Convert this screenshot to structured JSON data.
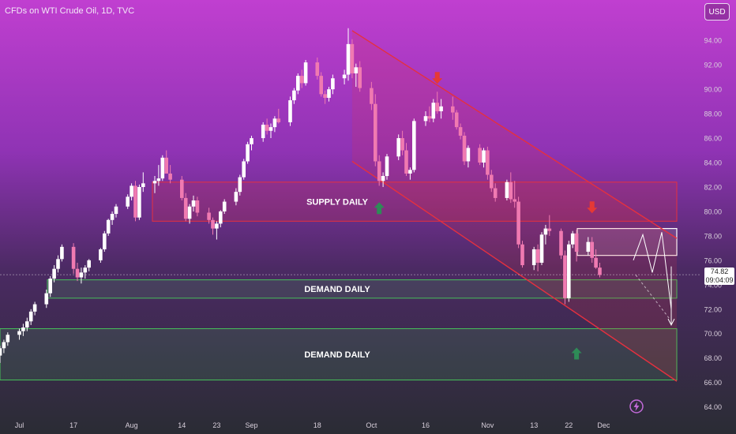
{
  "header": {
    "title": "CFDs on WTI Crude Oil, 1D, TVC",
    "currency_button": "USD"
  },
  "current_price": {
    "value": "74.82",
    "countdown": "09:04:09"
  },
  "chart_data": {
    "type": "candlestick",
    "symbol": "CFDs on WTI Crude Oil",
    "interval": "1D",
    "source": "TVC",
    "y_axis": {
      "ticks": [
        64,
        66,
        68,
        70,
        72,
        74,
        76,
        78,
        80,
        82,
        84,
        86,
        88,
        90,
        92,
        94
      ],
      "tick_labels": [
        "64.00",
        "66.00",
        "68.00",
        "70.00",
        "72.00",
        "74.00",
        "76.00",
        "78.00",
        "80.00",
        "82.00",
        "84.00",
        "86.00",
        "88.00",
        "90.00",
        "92.00",
        "94.00"
      ],
      "range": [
        63.2,
        95.5
      ],
      "position": "right"
    },
    "x_axis": {
      "tick_labels": [
        "Jul",
        "17",
        "Aug",
        "14",
        "23",
        "Sep",
        "18",
        "Oct",
        "16",
        "Nov",
        "13",
        "22",
        "Dec"
      ],
      "tick_positions": [
        "2023-07-03",
        "2023-07-17",
        "2023-08-01",
        "2023-08-14",
        "2023-08-23",
        "2023-09-01",
        "2023-09-18",
        "2023-10-02",
        "2023-10-16",
        "2023-11-01",
        "2023-11-13",
        "2023-11-22",
        "2023-12-01"
      ]
    },
    "candles_ohlc": [
      [
        68.2,
        69.0,
        67.6,
        68.8
      ],
      [
        68.8,
        69.5,
        68.4,
        69.3
      ],
      [
        69.3,
        70.1,
        69.0,
        69.9
      ],
      [
        69.9,
        70.4,
        69.5,
        70.2
      ],
      [
        70.2,
        70.8,
        69.8,
        70.5
      ],
      [
        70.5,
        71.3,
        70.2,
        71.0
      ],
      [
        71.0,
        72.0,
        70.7,
        71.8
      ],
      [
        71.8,
        72.6,
        71.5,
        72.4
      ],
      [
        72.4,
        73.6,
        72.1,
        73.3
      ],
      [
        73.3,
        74.7,
        73.0,
        74.5
      ],
      [
        74.5,
        75.6,
        74.2,
        75.3
      ],
      [
        75.3,
        76.4,
        75.0,
        76.1
      ],
      [
        76.1,
        77.3,
        75.9,
        77.1
      ],
      [
        77.1,
        77.4,
        74.9,
        75.3
      ],
      [
        75.3,
        75.8,
        74.3,
        74.6
      ],
      [
        74.6,
        75.4,
        74.1,
        75.0
      ],
      [
        75.0,
        75.6,
        74.5,
        75.4
      ],
      [
        75.4,
        76.1,
        75.1,
        76.0
      ],
      [
        76.0,
        77.0,
        75.8,
        76.9
      ],
      [
        76.9,
        78.4,
        76.7,
        78.2
      ],
      [
        78.2,
        79.4,
        78.0,
        79.3
      ],
      [
        79.3,
        80.0,
        78.9,
        79.8
      ],
      [
        79.8,
        80.6,
        79.5,
        80.4
      ],
      [
        80.4,
        81.4,
        80.2,
        81.2
      ],
      [
        81.2,
        82.3,
        80.9,
        82.1
      ],
      [
        82.1,
        82.5,
        79.2,
        79.5
      ],
      [
        79.5,
        82.2,
        79.3,
        82.0
      ],
      [
        82.0,
        83.2,
        81.6,
        82.3
      ],
      [
        82.3,
        82.9,
        81.5,
        82.5
      ],
      [
        82.5,
        83.8,
        82.1,
        82.7
      ],
      [
        82.7,
        84.6,
        82.5,
        84.4
      ],
      [
        84.4,
        85.0,
        83.2,
        83.1
      ],
      [
        83.1,
        83.8,
        82.3,
        82.6
      ],
      [
        82.6,
        82.9,
        80.9,
        81.1
      ],
      [
        81.1,
        81.5,
        79.2,
        79.4
      ],
      [
        79.4,
        80.6,
        79.0,
        80.4
      ],
      [
        80.4,
        81.3,
        80.0,
        80.9
      ],
      [
        80.9,
        81.2,
        79.6,
        79.9
      ],
      [
        79.9,
        80.3,
        79.0,
        79.3
      ],
      [
        79.3,
        79.5,
        78.1,
        78.6
      ],
      [
        78.6,
        79.2,
        77.7,
        79.0
      ],
      [
        79.0,
        80.1,
        78.7,
        80.0
      ],
      [
        80.0,
        81.0,
        79.8,
        80.8
      ],
      [
        80.8,
        81.9,
        80.5,
        81.6
      ],
      [
        81.6,
        83.0,
        81.3,
        82.8
      ],
      [
        82.8,
        84.3,
        82.6,
        84.1
      ],
      [
        84.1,
        85.7,
        83.9,
        85.5
      ],
      [
        85.5,
        86.2,
        85.0,
        86.0
      ],
      [
        86.0,
        87.3,
        85.7,
        87.1
      ],
      [
        87.1,
        87.6,
        86.3,
        86.6
      ],
      [
        86.6,
        87.2,
        86.0,
        86.9
      ],
      [
        86.9,
        87.8,
        86.5,
        87.6
      ],
      [
        87.6,
        88.4,
        87.2,
        87.3
      ],
      [
        87.3,
        89.4,
        87.0,
        89.1
      ],
      [
        89.1,
        90.1,
        88.8,
        89.9
      ],
      [
        89.9,
        91.3,
        89.6,
        91.1
      ],
      [
        91.1,
        91.6,
        90.1,
        90.5
      ],
      [
        90.5,
        92.4,
        90.3,
        92.2
      ],
      [
        92.2,
        92.6,
        90.8,
        91.1
      ],
      [
        91.1,
        91.4,
        89.4,
        89.6
      ],
      [
        89.6,
        89.9,
        88.8,
        89.3
      ],
      [
        89.3,
        90.2,
        89.0,
        90.0
      ],
      [
        90.0,
        91.2,
        89.6,
        90.9
      ],
      [
        90.9,
        91.6,
        90.4,
        91.2
      ],
      [
        91.2,
        95.0,
        90.7,
        93.7
      ],
      [
        93.7,
        94.1,
        90.9,
        91.3
      ],
      [
        91.3,
        92.1,
        90.2,
        91.8
      ],
      [
        91.8,
        92.3,
        89.8,
        90.1
      ],
      [
        90.1,
        90.6,
        88.3,
        88.8
      ],
      [
        88.8,
        89.6,
        83.7,
        84.1
      ],
      [
        84.1,
        84.6,
        82.1,
        82.5
      ],
      [
        82.5,
        83.2,
        82.0,
        82.9
      ],
      [
        82.9,
        84.7,
        82.6,
        84.5
      ],
      [
        84.5,
        86.3,
        84.2,
        86.0
      ],
      [
        86.0,
        86.6,
        84.6,
        85.0
      ],
      [
        85.0,
        85.6,
        82.9,
        83.1
      ],
      [
        83.1,
        83.6,
        82.6,
        83.4
      ],
      [
        83.4,
        87.6,
        83.2,
        87.4
      ],
      [
        87.4,
        88.2,
        87.0,
        87.8
      ],
      [
        87.8,
        88.6,
        87.3,
        87.6
      ],
      [
        87.6,
        89.2,
        87.3,
        88.9
      ],
      [
        88.9,
        89.8,
        88.0,
        88.2
      ],
      [
        88.2,
        89.2,
        87.6,
        88.6
      ],
      [
        88.6,
        89.4,
        87.5,
        88.1
      ],
      [
        88.1,
        88.3,
        86.7,
        86.9
      ],
      [
        86.9,
        87.2,
        85.9,
        86.2
      ],
      [
        86.2,
        86.5,
        83.8,
        84.1
      ],
      [
        84.1,
        85.4,
        83.6,
        85.2
      ],
      [
        85.2,
        85.5,
        83.8,
        84.0
      ],
      [
        84.0,
        85.2,
        83.6,
        85.0
      ],
      [
        85.0,
        85.3,
        82.6,
        83.0
      ],
      [
        83.0,
        83.4,
        81.6,
        81.9
      ],
      [
        81.9,
        82.3,
        80.8,
        81.1
      ],
      [
        81.1,
        82.6,
        80.9,
        82.4
      ],
      [
        82.4,
        83.2,
        80.7,
        81.0
      ],
      [
        81.0,
        82.5,
        80.3,
        80.8
      ],
      [
        80.8,
        81.2,
        77.0,
        77.3
      ],
      [
        77.3,
        77.6,
        75.4,
        75.6
      ],
      [
        75.6,
        77.1,
        75.2,
        76.9
      ],
      [
        76.9,
        77.3,
        75.1,
        75.8
      ],
      [
        75.8,
        78.3,
        75.6,
        78.1
      ],
      [
        78.1,
        78.9,
        77.3,
        78.6
      ],
      [
        78.6,
        79.7,
        78.0,
        78.4
      ],
      [
        78.4,
        78.6,
        76.1,
        76.4
      ],
      [
        76.4,
        76.8,
        72.4,
        72.9
      ],
      [
        72.9,
        77.6,
        72.6,
        77.3
      ],
      [
        77.3,
        78.4,
        77.0,
        78.2
      ],
      [
        78.2,
        78.5,
        75.9,
        76.7
      ],
      [
        76.7,
        77.9,
        76.4,
        77.5
      ],
      [
        77.5,
        77.9,
        75.8,
        76.2
      ],
      [
        76.2,
        76.9,
        75.3,
        75.4
      ],
      [
        75.4,
        75.8,
        74.6,
        74.8
      ]
    ],
    "zones": [
      {
        "label": "SUPPLY DAILY",
        "type": "supply",
        "price_range": [
          79.2,
          82.4
        ]
      },
      {
        "label": "DEMAND DAILY",
        "type": "demand",
        "price_range": [
          72.9,
          74.4
        ]
      },
      {
        "label": "DEMAND DAILY",
        "type": "demand",
        "price_range": [
          66.2,
          70.4
        ]
      }
    ],
    "consolidation_box": {
      "price_range": [
        76.4,
        78.6
      ]
    },
    "channel": {
      "type": "descending",
      "upper_line": [
        [
          "2023-09-27",
          94.8
        ],
        [
          "2023-12-01",
          77.8
        ]
      ],
      "lower_line": [
        [
          "2023-09-27",
          84.1
        ],
        [
          "2023-12-01",
          66.1
        ]
      ]
    },
    "arrows": [
      {
        "direction": "down",
        "color": "#e53935",
        "at": [
          "2023-10-19",
          90.9
        ]
      },
      {
        "direction": "up",
        "color": "#2e8b57",
        "at": [
          "2023-10-04",
          80.3
        ]
      },
      {
        "direction": "down",
        "color": "#e53935",
        "at": [
          "2023-11-28",
          80.3
        ]
      },
      {
        "direction": "up",
        "color": "#2e8b57",
        "at": [
          "2023-11-24",
          68.4
        ]
      }
    ],
    "projection_path": [
      76.0,
      78.1,
      75.0,
      78.3,
      72.0
    ],
    "last_price_line": 74.82,
    "colors": {
      "bull": "#ffffff",
      "bear": "#f07ab1",
      "supply_zone": "#e5303f",
      "demand_zone": "#46c15a",
      "channel": "#e5303f"
    }
  }
}
